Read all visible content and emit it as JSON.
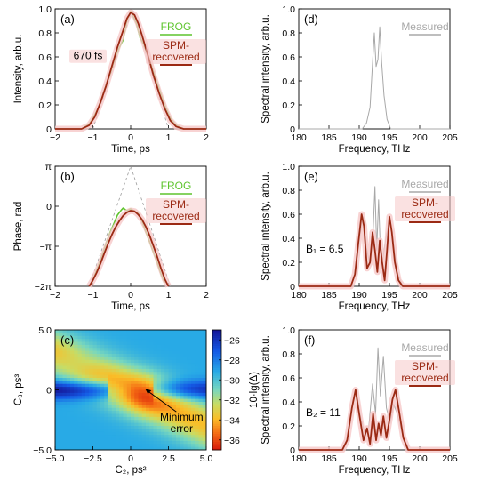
{
  "colors": {
    "frog": "#5ec42d",
    "spm": "#9b2a14",
    "measured": "#a8a8a8",
    "halo": "#f6c8c8"
  },
  "chart_data": [
    {
      "id": "a",
      "panel_label": "(a)",
      "type": "line",
      "xlabel": "Time, ps",
      "ylabel": "Intensity, arb.u.",
      "xlim": [
        -2,
        2
      ],
      "ylim": [
        0,
        1
      ],
      "xticks": [
        "−2",
        "−1",
        "0",
        "1",
        "2"
      ],
      "yticks": [
        "0",
        "0.2",
        "0.4",
        "0.6",
        "0.8",
        "1.0"
      ],
      "annotations": [
        "670 fs"
      ],
      "series": [
        {
          "name": "FROG",
          "color": "frog",
          "x": [
            -2,
            -1.3,
            -1.1,
            -1.0,
            -0.85,
            -0.7,
            -0.55,
            -0.4,
            -0.3,
            -0.2,
            -0.1,
            0.0,
            0.05,
            0.15,
            0.25,
            0.35,
            0.45,
            0.6,
            0.75,
            0.9,
            1.05,
            1.2,
            1.4,
            2
          ],
          "y": [
            0,
            0.0,
            0.04,
            0.09,
            0.18,
            0.32,
            0.45,
            0.6,
            0.68,
            0.74,
            0.9,
            0.98,
            0.95,
            0.88,
            0.76,
            0.7,
            0.62,
            0.48,
            0.34,
            0.2,
            0.09,
            0.03,
            0.0,
            0
          ]
        },
        {
          "name": "SPM-\nrecovered",
          "color": "spm",
          "x": [
            -2,
            -1.3,
            -1.1,
            -0.95,
            -0.8,
            -0.65,
            -0.5,
            -0.35,
            -0.2,
            -0.1,
            0.0,
            0.1,
            0.2,
            0.3,
            0.45,
            0.6,
            0.75,
            0.9,
            1.05,
            1.2,
            1.4,
            2
          ],
          "y": [
            0,
            0.0,
            0.03,
            0.1,
            0.22,
            0.36,
            0.52,
            0.68,
            0.82,
            0.92,
            0.97,
            0.95,
            0.88,
            0.78,
            0.62,
            0.45,
            0.3,
            0.17,
            0.07,
            0.02,
            0.0,
            0
          ]
        }
      ]
    },
    {
      "id": "b",
      "panel_label": "(b)",
      "type": "line",
      "xlabel": "Time, ps",
      "ylabel": "Phase, rad",
      "xlim": [
        -2,
        2
      ],
      "ylim": [
        -6.2832,
        3.1416
      ],
      "xticks": [
        "−2",
        "−1",
        "0",
        "1",
        "2"
      ],
      "yticks": [
        "−2π",
        "−π",
        "0",
        "π"
      ],
      "series": [
        {
          "name": "FROG",
          "color": "frog",
          "x": [
            -1.05,
            -0.95,
            -0.85,
            -0.75,
            -0.65,
            -0.55,
            -0.45,
            -0.35,
            -0.25,
            -0.2,
            -0.1,
            0.0,
            0.1,
            0.2,
            0.3,
            0.4,
            0.5,
            0.6,
            0.7,
            0.8,
            0.9
          ],
          "y": [
            -6.2,
            -5.4,
            -4.6,
            -3.8,
            -2.9,
            -2.1,
            -1.4,
            -0.7,
            -0.3,
            -0.15,
            -0.35,
            -0.2,
            -0.4,
            -0.55,
            -1.2,
            -2.0,
            -2.8,
            -3.6,
            -4.4,
            -5.3,
            -6.0
          ]
        },
        {
          "name": "SPM-\nrecovered",
          "color": "spm",
          "x": [
            -1.1,
            -1.0,
            -0.9,
            -0.8,
            -0.7,
            -0.6,
            -0.5,
            -0.4,
            -0.3,
            -0.2,
            -0.1,
            0.0,
            0.1,
            0.2,
            0.3,
            0.4,
            0.5,
            0.6,
            0.7,
            0.8,
            0.9,
            1.0
          ],
          "y": [
            -6.28,
            -5.8,
            -5.2,
            -4.5,
            -3.7,
            -2.95,
            -2.25,
            -1.65,
            -1.15,
            -0.75,
            -0.48,
            -0.35,
            -0.4,
            -0.65,
            -1.05,
            -1.6,
            -2.3,
            -3.1,
            -3.95,
            -4.85,
            -5.7,
            -6.28
          ]
        }
      ]
    },
    {
      "id": "c",
      "panel_label": "(c)",
      "type": "heatmap",
      "xlabel": "C₂, ps²",
      "ylabel": "C₃, ps³",
      "xlim": [
        -5,
        5
      ],
      "ylim": [
        -5,
        5
      ],
      "xticks": [
        "−5.0",
        "−2.5",
        "0",
        "2.5",
        "5.0"
      ],
      "yticks": [
        "−5.0",
        "0",
        "5.0"
      ],
      "colorbar": {
        "label": "10·lg(Δ)",
        "range": [
          -37,
          -25
        ],
        "ticks": [
          "−26",
          "−28",
          "−30",
          "−32",
          "−34",
          "−36"
        ]
      },
      "annotations": [
        "Minimum\nerror"
      ],
      "minimum": [
        0.9,
        0.1
      ]
    },
    {
      "id": "d",
      "panel_label": "(d)",
      "type": "line",
      "xlabel": "Frequency, THz",
      "ylabel": "Spectral intensity, arb.u.",
      "xlim": [
        180,
        205
      ],
      "ylim": [
        0,
        1
      ],
      "xticks": [
        "180",
        "185",
        "190",
        "195",
        "200",
        "205"
      ],
      "yticks": [
        "0",
        "0.2",
        "0.4",
        "0.6",
        "0.8",
        "1.0"
      ],
      "series": [
        {
          "name": "Measured",
          "color": "measured",
          "x": [
            180,
            190.5,
            191.2,
            191.8,
            192.2,
            192.5,
            192.8,
            193.1,
            193.4,
            193.7,
            194.1,
            194.6,
            195.2,
            205
          ],
          "y": [
            0,
            0,
            0.05,
            0.18,
            0.55,
            0.8,
            0.52,
            0.58,
            0.85,
            0.56,
            0.28,
            0.08,
            0,
            0
          ]
        }
      ]
    },
    {
      "id": "e",
      "panel_label": "(e)",
      "type": "line",
      "xlabel": "Frequency, THz",
      "ylabel": "Spectral intensity, arb.u.",
      "xlim": [
        180,
        205
      ],
      "ylim": [
        0,
        1
      ],
      "xticks": [
        "180",
        "185",
        "190",
        "195",
        "200",
        "205"
      ],
      "yticks": [
        "0",
        "0.2",
        "0.4",
        "0.6",
        "0.8",
        "1.0"
      ],
      "annotations": [
        "B₁ = 6.5"
      ],
      "series": [
        {
          "name": "Measured",
          "color": "measured",
          "x": [
            180,
            188.6,
            189.5,
            190.2,
            190.7,
            191.2,
            191.8,
            192.3,
            192.6,
            192.9,
            193.2,
            193.5,
            193.9,
            194.4,
            195.0,
            195.5,
            196.3,
            197.2,
            205
          ],
          "y": [
            0,
            0,
            0.15,
            0.45,
            0.58,
            0.32,
            0.18,
            0.45,
            0.83,
            0.3,
            0.72,
            0.3,
            0.22,
            0.4,
            0.55,
            0.42,
            0.12,
            0,
            0
          ]
        },
        {
          "name": "SPM-\nrecovered",
          "color": "spm",
          "x": [
            180,
            188.6,
            189.3,
            189.9,
            190.4,
            190.8,
            191.3,
            191.8,
            192.2,
            192.6,
            193.0,
            193.4,
            193.8,
            194.2,
            194.6,
            195.0,
            195.4,
            195.9,
            196.5,
            197.2,
            205
          ],
          "y": [
            0,
            0,
            0.1,
            0.38,
            0.6,
            0.5,
            0.15,
            0.2,
            0.45,
            0.3,
            0.12,
            0.38,
            0.2,
            0.05,
            0.3,
            0.58,
            0.45,
            0.2,
            0.05,
            0,
            0
          ]
        }
      ]
    },
    {
      "id": "f",
      "panel_label": "(f)",
      "type": "line",
      "xlabel": "Frequency, THz",
      "ylabel": "Spectral intensity, arb.u.",
      "xlim": [
        180,
        205
      ],
      "ylim": [
        0,
        1
      ],
      "xticks": [
        "180",
        "185",
        "190",
        "195",
        "200",
        "205"
      ],
      "yticks": [
        "0",
        "0.2",
        "0.4",
        "0.6",
        "0.8",
        "1.0"
      ],
      "annotations": [
        "B₂ = 11"
      ],
      "series": [
        {
          "name": "Measured",
          "color": "measured",
          "x": [
            180,
            187.2,
            188.2,
            189.0,
            189.5,
            190.2,
            191.0,
            191.6,
            192.2,
            192.7,
            193.1,
            193.5,
            194.0,
            194.5,
            195.1,
            195.7,
            196.3,
            197.2,
            198.0,
            205
          ],
          "y": [
            0,
            0,
            0.12,
            0.42,
            0.5,
            0.28,
            0.12,
            0.2,
            0.55,
            0.3,
            0.85,
            0.45,
            0.78,
            0.35,
            0.22,
            0.38,
            0.3,
            0.12,
            0,
            0
          ]
        },
        {
          "name": "SPM-\nrecovered",
          "color": "spm",
          "x": [
            180,
            187.2,
            188.0,
            188.8,
            189.4,
            190.0,
            190.7,
            191.3,
            191.8,
            192.3,
            192.8,
            193.2,
            193.6,
            194.0,
            194.5,
            195.0,
            195.5,
            196.0,
            196.6,
            197.3,
            198.1,
            205
          ],
          "y": [
            0,
            0,
            0.08,
            0.35,
            0.5,
            0.3,
            0.08,
            0.18,
            0.05,
            0.3,
            0.08,
            0.22,
            0.12,
            0.28,
            0.1,
            0.25,
            0.42,
            0.5,
            0.32,
            0.1,
            0,
            0
          ]
        }
      ]
    }
  ]
}
